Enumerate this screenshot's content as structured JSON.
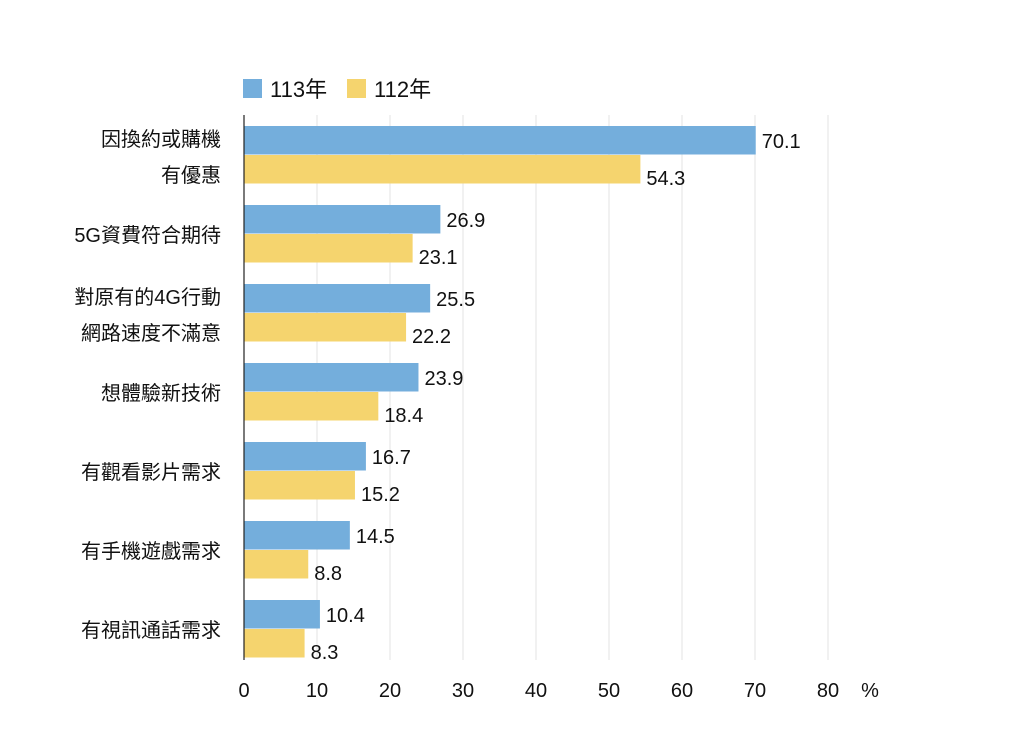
{
  "chart_data": {
    "type": "bar",
    "orientation": "horizontal",
    "categories": [
      [
        "因換約或購機",
        "有優惠"
      ],
      [
        "5G資費符合期待"
      ],
      [
        "對原有的4G行動",
        "網路速度不滿意"
      ],
      [
        "想體驗新技術"
      ],
      [
        "有觀看影片需求"
      ],
      [
        "有手機遊戲需求"
      ],
      [
        "有視訊通話需求"
      ]
    ],
    "series": [
      {
        "name": "113年",
        "color": "#74aedc",
        "values": [
          70.1,
          26.9,
          25.5,
          23.9,
          16.7,
          14.5,
          10.4
        ]
      },
      {
        "name": "112年",
        "color": "#f5d46e",
        "values": [
          54.3,
          23.1,
          22.2,
          18.4,
          15.2,
          8.8,
          8.3
        ]
      }
    ],
    "xlim": [
      0,
      80
    ],
    "xticks": [
      "0",
      "10",
      "20",
      "30",
      "40",
      "50",
      "60",
      "70",
      "80"
    ],
    "xunit": "%",
    "grid": true,
    "legend": "top-left",
    "data_labels": true
  }
}
